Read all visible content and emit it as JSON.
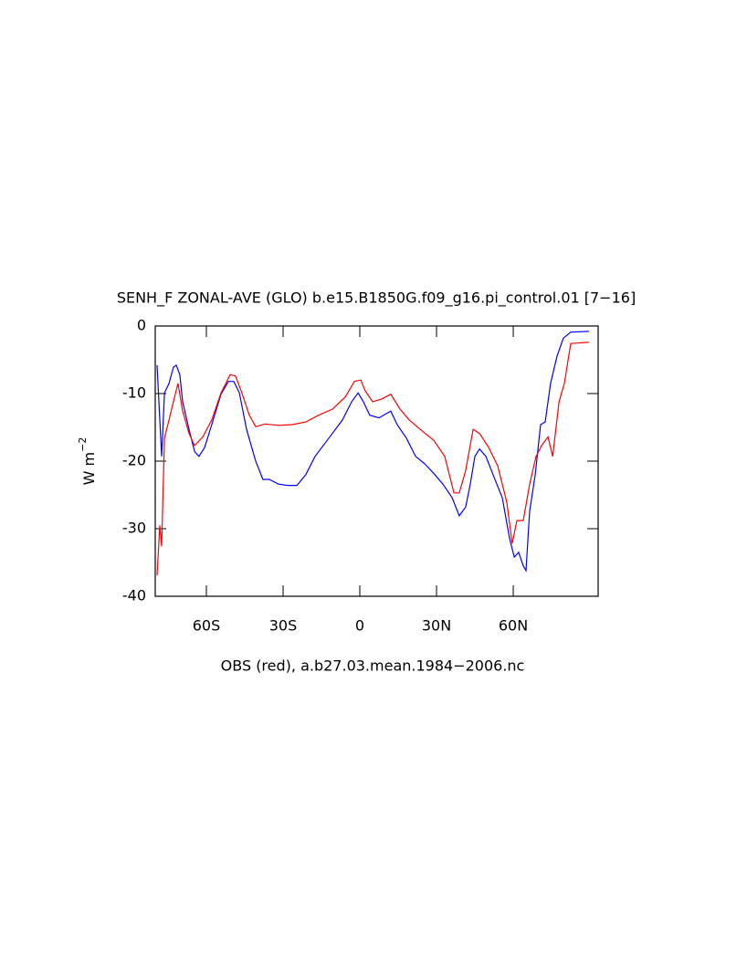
{
  "chart_data": {
    "type": "line",
    "title": "SENH_F ZONAL-AVE (GLO) b.e15.B1850G.f09_g16.pi_control.01 [7−16]",
    "xlabel": "OBS (red), a.b27.03.mean.1984−2006.nc",
    "ylabel": {
      "base": "W m",
      "sup": "−2"
    },
    "xlim": [
      -80,
      93.2
    ],
    "ylim": [
      -40,
      0
    ],
    "xticks": [
      {
        "value": -60,
        "label": "60S"
      },
      {
        "value": -30,
        "label": "30S"
      },
      0,
      {
        "value": 30,
        "label": "30N"
      },
      {
        "value": 60,
        "label": "60N"
      }
    ],
    "yticks": [
      0,
      -10,
      -20,
      -30,
      -40
    ],
    "series": [
      {
        "color": "#0000ff",
        "x": [
          -79.3,
          -77.5,
          -76.4,
          -74.6,
          -72.9,
          -71.8,
          -70.4,
          -69.3,
          -66.8,
          -64.6,
          -62.9,
          -60.7,
          -57.9,
          -54.3,
          -51.4,
          -49.3,
          -47.1,
          -44.3,
          -40.7,
          -37.9,
          -35.4,
          -31.8,
          -28.2,
          -24.6,
          -21.1,
          -17.5,
          -12.1,
          -6.8,
          -3.2,
          -0.7,
          1.4,
          3.9,
          7.5,
          12.1,
          14.6,
          18.2,
          21.8,
          25.4,
          28.9,
          32.5,
          36.1,
          38.9,
          41.4,
          43.2,
          45,
          46.8,
          49.3,
          52.1,
          55.7,
          58.6,
          60.4,
          62.1,
          63.9,
          65,
          66.4,
          68.6,
          70.7,
          72.5,
          74.6,
          77.1,
          79.6,
          82.5,
          89.6
        ],
        "values": [
          -5.8,
          -19.3,
          -9.9,
          -8.5,
          -6.1,
          -5.8,
          -7.2,
          -11.2,
          -15.3,
          -18.6,
          -19.3,
          -18,
          -14.6,
          -10.1,
          -8.2,
          -8.2,
          -9.9,
          -15.3,
          -20,
          -22.7,
          -22.7,
          -23.4,
          -23.6,
          -23.6,
          -22,
          -19.3,
          -16.6,
          -13.9,
          -11.2,
          -9.9,
          -11.2,
          -13.2,
          -13.6,
          -12.6,
          -14.6,
          -16.6,
          -19.3,
          -20.4,
          -21.8,
          -23.4,
          -25.4,
          -28.1,
          -26.8,
          -23.4,
          -19.3,
          -18.2,
          -19.3,
          -22,
          -25.4,
          -31.5,
          -34.2,
          -33.5,
          -35.5,
          -36.2,
          -27.4,
          -22,
          -14.6,
          -14.2,
          -8.5,
          -4.5,
          -1.8,
          -0.9,
          -0.8
        ]
      },
      {
        "color": "#ff0000",
        "x": [
          -79.3,
          -78.2,
          -77.5,
          -76.4,
          -74.6,
          -72.9,
          -71.1,
          -69.3,
          -66.8,
          -64.6,
          -61.4,
          -57.9,
          -54.3,
          -50.7,
          -48.6,
          -46.1,
          -43.2,
          -40.7,
          -37.1,
          -31.8,
          -26.4,
          -21.1,
          -16.1,
          -10.7,
          -5.7,
          -2.1,
          0.4,
          2.1,
          5,
          8.6,
          12.1,
          15.7,
          19.3,
          23.6,
          28.9,
          33.2,
          36.8,
          38.9,
          41.4,
          44.3,
          46.8,
          50.4,
          53.9,
          57.5,
          59.6,
          61.4,
          63.9,
          66.4,
          68.9,
          71.1,
          73.6,
          75.4,
          77.9,
          80,
          82.5,
          89.6
        ],
        "values": [
          -36.9,
          -29.5,
          -32.6,
          -16.6,
          -13.9,
          -11.2,
          -8.5,
          -12.6,
          -15.9,
          -17.7,
          -16.4,
          -13.9,
          -9.9,
          -7.2,
          -7.4,
          -9.9,
          -13.2,
          -14.9,
          -14.5,
          -14.7,
          -14.6,
          -14.2,
          -13.2,
          -12.3,
          -10.5,
          -8.2,
          -8,
          -9.6,
          -11.2,
          -10.8,
          -10.1,
          -12.3,
          -13.9,
          -15.3,
          -16.9,
          -19.3,
          -24.7,
          -24.7,
          -21.4,
          -15.3,
          -15.9,
          -18,
          -20.7,
          -26.1,
          -32.2,
          -28.8,
          -28.8,
          -23.4,
          -19.3,
          -17.7,
          -16.4,
          -19.3,
          -11.2,
          -8.5,
          -2.6,
          -2.4
        ]
      }
    ]
  }
}
